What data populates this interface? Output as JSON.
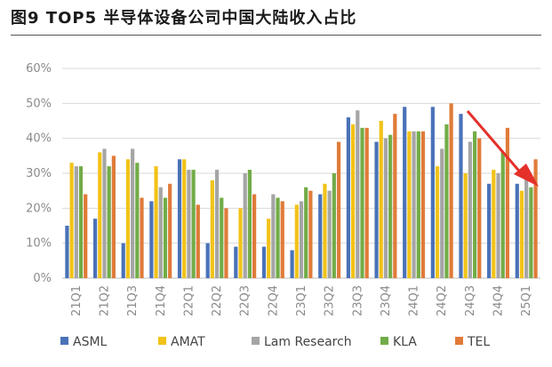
{
  "page": {
    "title": "图9 TOP5 半导体设备公司中国大陆收入占比"
  },
  "chart_data": {
    "type": "bar",
    "title": "",
    "xlabel": "",
    "ylabel": "",
    "ylim": [
      0,
      60
    ],
    "yticks": [
      "0%",
      "10%",
      "20%",
      "30%",
      "40%",
      "50%",
      "60%"
    ],
    "grid": true,
    "legend": "bottom",
    "categories": [
      "21Q1",
      "21Q2",
      "21Q3",
      "21Q4",
      "22Q1",
      "22Q2",
      "22Q3",
      "22Q4",
      "23Q1",
      "23Q2",
      "23Q3",
      "23Q4",
      "24Q1",
      "24Q2",
      "24Q3",
      "24Q4",
      "25Q1"
    ],
    "series": [
      {
        "name": "ASML",
        "color": "#4a72b8",
        "values": [
          15,
          17,
          10,
          22,
          34,
          10,
          9,
          9,
          8,
          24,
          46,
          39,
          49,
          49,
          47,
          27,
          27
        ]
      },
      {
        "name": "AMAT",
        "color": "#f2c318",
        "values": [
          33,
          36,
          34,
          32,
          34,
          28,
          20,
          17,
          21,
          27,
          44,
          45,
          42,
          32,
          30,
          31,
          25
        ]
      },
      {
        "name": "Lam Research",
        "color": "#a5a5a5",
        "values": [
          32,
          37,
          37,
          26,
          31,
          31,
          30,
          24,
          22,
          25,
          48,
          40,
          42,
          37,
          39,
          30,
          31
        ]
      },
      {
        "name": "KLA",
        "color": "#72ac48",
        "values": [
          32,
          32,
          33,
          23,
          31,
          23,
          31,
          23,
          26,
          30,
          43,
          41,
          42,
          44,
          42,
          36,
          26
        ]
      },
      {
        "name": "TEL",
        "color": "#e07b39",
        "values": [
          24,
          35,
          23,
          27,
          21,
          20,
          24,
          22,
          25,
          39,
          43,
          47,
          42,
          50,
          40,
          43,
          34
        ]
      }
    ]
  }
}
